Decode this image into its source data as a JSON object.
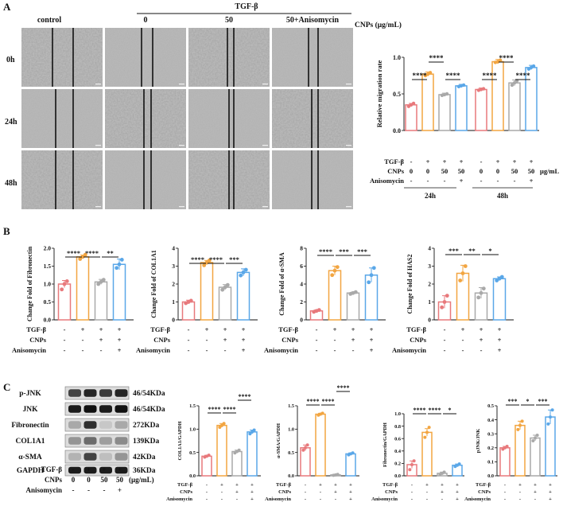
{
  "colors": {
    "control": "#e8797c",
    "tgf": "#f2a541",
    "cnps": "#a9a9a9",
    "aniso": "#5aa7e8",
    "bar_text": "#111111"
  },
  "panel_labels": [
    "A",
    "B",
    "C"
  ],
  "panel_a": {
    "tgf_header": "TGF-β",
    "column_labels": [
      "control",
      "0",
      "50",
      "50+Anisomycin"
    ],
    "conc_label": "CNPs (μg/mL)",
    "row_labels": [
      "0h",
      "24h",
      "48h"
    ]
  },
  "treatment_rows": {
    "labels": [
      "TGF-β",
      "CNPs",
      "Anisomycin"
    ],
    "tgf": [
      "-",
      "+",
      "+",
      "+"
    ],
    "cnps": [
      "-",
      "-",
      "+",
      "+"
    ],
    "aniso": [
      "-",
      "-",
      "-",
      "+"
    ]
  },
  "migration_rows": {
    "tgf": [
      "-",
      "+",
      "+",
      "+",
      "-",
      "+",
      "+",
      "+"
    ],
    "cnps": [
      "0",
      "0",
      "50",
      "50",
      "0",
      "0",
      "50",
      "50"
    ],
    "aniso": [
      "-",
      "-",
      "-",
      "+",
      "-",
      "-",
      "-",
      "+"
    ],
    "unit": "μg/mL"
  },
  "western": {
    "bands": [
      {
        "name": "p-JNK",
        "size": "46/54KDa"
      },
      {
        "name": "JNK",
        "size": "46/54KDa"
      },
      {
        "name": "Fibronectin",
        "size": "272KDa"
      },
      {
        "name": "COL1A1",
        "size": "139KDa"
      },
      {
        "name": "α-SMA",
        "size": "42KDa"
      },
      {
        "name": "GAPDH",
        "size": "36KDa"
      }
    ],
    "tgf": [
      "-",
      "+",
      "+",
      "+"
    ],
    "cnps": [
      "0",
      "0",
      "50",
      "50"
    ],
    "aniso": [
      "-",
      "-",
      "-",
      "+"
    ],
    "unit": "(μg/mL)"
  },
  "chart_data": [
    {
      "id": "migration",
      "type": "bar",
      "title": "",
      "xlabel": "",
      "ylabel": "Relative migration rate",
      "ylim": [
        0.0,
        1.0
      ],
      "yticks": [
        0.0,
        0.5,
        1.0
      ],
      "ytick_labels": [
        "0.0",
        "0.5",
        "1.0"
      ],
      "group_labels": [
        "24h",
        "48h"
      ],
      "values": [
        0.35,
        0.77,
        0.49,
        0.61,
        0.56,
        0.94,
        0.65,
        0.86
      ],
      "errors": [
        0.02,
        0.03,
        0.02,
        0.02,
        0.02,
        0.03,
        0.04,
        0.03
      ],
      "points": [
        [
          0.33,
          0.35,
          0.37
        ],
        [
          0.75,
          0.77,
          0.79
        ],
        [
          0.48,
          0.49,
          0.5
        ],
        [
          0.6,
          0.61,
          0.62
        ],
        [
          0.55,
          0.56,
          0.57
        ],
        [
          0.93,
          0.94,
          0.96
        ],
        [
          0.62,
          0.65,
          0.68
        ],
        [
          0.84,
          0.86,
          0.88
        ]
      ],
      "significance": [
        {
          "from": 0,
          "to": 1,
          "label": "****"
        },
        {
          "from": 1,
          "to": 2,
          "label": "****"
        },
        {
          "from": 2,
          "to": 3,
          "label": "****"
        },
        {
          "from": 4,
          "to": 5,
          "label": "****"
        },
        {
          "from": 5,
          "to": 6,
          "label": "****"
        },
        {
          "from": 6,
          "to": 7,
          "label": "****"
        }
      ]
    },
    {
      "id": "fibronectin",
      "type": "bar",
      "ylabel": "Change Fold of Fibronectin",
      "ylim": [
        0,
        2.0
      ],
      "yticks": [
        0,
        0.5,
        1.0,
        1.5,
        2.0
      ],
      "ytick_labels": [
        "0.0",
        "0.5",
        "1.0",
        "1.5",
        "2.0"
      ],
      "values": [
        1.0,
        1.76,
        1.06,
        1.55
      ],
      "errors": [
        0.1,
        0.05,
        0.07,
        0.15
      ],
      "points": [
        [
          0.85,
          1.0,
          1.08
        ],
        [
          1.7,
          1.76,
          1.82
        ],
        [
          1.0,
          1.06,
          1.12
        ],
        [
          1.45,
          1.55,
          1.68
        ]
      ],
      "significance": [
        {
          "from": 0,
          "to": 1,
          "label": "****"
        },
        {
          "from": 1,
          "to": 2,
          "label": "****"
        },
        {
          "from": 2,
          "to": 3,
          "label": "**"
        }
      ]
    },
    {
      "id": "col1a1",
      "type": "bar",
      "ylabel": "Change Fold of COL1A1",
      "ylim": [
        0,
        4
      ],
      "yticks": [
        0,
        1,
        2,
        3,
        4
      ],
      "ytick_labels": [
        "0",
        "1",
        "2",
        "3",
        "4"
      ],
      "values": [
        1.0,
        3.2,
        1.82,
        2.65
      ],
      "errors": [
        0.1,
        0.12,
        0.15,
        0.2
      ],
      "points": [
        [
          0.93,
          1.0,
          1.07
        ],
        [
          3.05,
          3.2,
          3.32
        ],
        [
          1.68,
          1.82,
          1.95
        ],
        [
          2.48,
          2.65,
          2.8
        ]
      ],
      "significance": [
        {
          "from": 0,
          "to": 1,
          "label": "****"
        },
        {
          "from": 1,
          "to": 2,
          "label": "****"
        },
        {
          "from": 2,
          "to": 3,
          "label": "***"
        }
      ]
    },
    {
      "id": "asma",
      "type": "bar",
      "ylabel": "Change Fold of α-SMA",
      "ylim": [
        0,
        8
      ],
      "yticks": [
        0,
        2,
        4,
        6,
        8
      ],
      "ytick_labels": [
        "0",
        "2",
        "4",
        "6",
        "8"
      ],
      "values": [
        1.0,
        5.5,
        3.0,
        5.0
      ],
      "errors": [
        0.1,
        0.5,
        0.1,
        0.8
      ],
      "points": [
        [
          0.9,
          1.0,
          1.1
        ],
        [
          5.0,
          5.5,
          5.9
        ],
        [
          2.9,
          3.0,
          3.1
        ],
        [
          4.2,
          5.0,
          5.8
        ]
      ],
      "significance": [
        {
          "from": 0,
          "to": 1,
          "label": "****"
        },
        {
          "from": 1,
          "to": 2,
          "label": "***"
        },
        {
          "from": 2,
          "to": 3,
          "label": "***"
        }
      ]
    },
    {
      "id": "has2",
      "type": "bar",
      "ylabel": "Change Fold of HAS2",
      "ylim": [
        0,
        4
      ],
      "yticks": [
        0,
        1,
        2,
        3,
        4
      ],
      "ytick_labels": [
        "0",
        "1",
        "2",
        "3",
        "4"
      ],
      "values": [
        1.0,
        2.6,
        1.5,
        2.3
      ],
      "errors": [
        0.35,
        0.45,
        0.3,
        0.1
      ],
      "points": [
        [
          0.7,
          1.0,
          1.35
        ],
        [
          2.2,
          2.6,
          3.0
        ],
        [
          1.25,
          1.5,
          1.75
        ],
        [
          2.2,
          2.3,
          2.4
        ]
      ],
      "significance": [
        {
          "from": 0,
          "to": 1,
          "label": "***"
        },
        {
          "from": 1,
          "to": 2,
          "label": "**"
        },
        {
          "from": 2,
          "to": 3,
          "label": "*"
        }
      ]
    },
    {
      "id": "col1a1_gapdh",
      "type": "bar",
      "ylabel": "COL1A1/GAPDH",
      "ylim": [
        0,
        1.5
      ],
      "yticks": [
        0,
        0.5,
        1.0,
        1.5
      ],
      "ytick_labels": [
        "0.0",
        "0.5",
        "1.0",
        "1.5"
      ],
      "values": [
        0.42,
        1.08,
        0.52,
        0.94
      ],
      "errors": [
        0.02,
        0.04,
        0.03,
        0.04
      ],
      "points": [
        [
          0.4,
          0.42,
          0.44
        ],
        [
          1.04,
          1.08,
          1.12
        ],
        [
          0.49,
          0.52,
          0.55
        ],
        [
          0.9,
          0.94,
          0.98
        ]
      ],
      "significance": [
        {
          "from": 0,
          "to": 1,
          "label": "****"
        },
        {
          "from": 1,
          "to": 2,
          "label": "****"
        },
        {
          "from": 2,
          "to": 3,
          "label": "****"
        }
      ]
    },
    {
      "id": "asma_gapdh",
      "type": "bar",
      "ylabel": "α-SMA/GAPDH",
      "ylim": [
        0,
        1.5
      ],
      "yticks": [
        0,
        0.5,
        1.0,
        1.5
      ],
      "ytick_labels": [
        "0.0",
        "0.5",
        "1.0",
        "1.5"
      ],
      "values": [
        0.6,
        1.32,
        0.02,
        0.47
      ],
      "errors": [
        0.06,
        0.02,
        0.01,
        0.02
      ],
      "points": [
        [
          0.55,
          0.6,
          0.66
        ],
        [
          1.3,
          1.32,
          1.34
        ],
        [
          0.01,
          0.02,
          0.03
        ],
        [
          0.45,
          0.47,
          0.49
        ]
      ],
      "significance": [
        {
          "from": 0,
          "to": 1,
          "label": "****"
        },
        {
          "from": 1,
          "to": 2,
          "label": "****"
        },
        {
          "from": 2,
          "to": 3,
          "label": "****"
        }
      ]
    },
    {
      "id": "fibronectin_gapdh",
      "type": "bar",
      "ylabel": "Fibronectin/GAPDH",
      "ylim": [
        0,
        1.0
      ],
      "yticks": [
        0,
        0.2,
        0.4,
        0.6,
        0.8,
        1.0
      ],
      "ytick_labels": [
        "0.0",
        "0.2",
        "0.4",
        "0.6",
        "0.8",
        "1.0"
      ],
      "values": [
        0.18,
        0.7,
        0.04,
        0.17
      ],
      "errors": [
        0.06,
        0.06,
        0.02,
        0.02
      ],
      "points": [
        [
          0.1,
          0.18,
          0.24
        ],
        [
          0.62,
          0.7,
          0.78
        ],
        [
          0.02,
          0.04,
          0.06
        ],
        [
          0.15,
          0.17,
          0.19
        ]
      ],
      "significance": [
        {
          "from": 0,
          "to": 1,
          "label": "****"
        },
        {
          "from": 1,
          "to": 2,
          "label": "****"
        },
        {
          "from": 2,
          "to": 3,
          "label": "*"
        }
      ]
    },
    {
      "id": "pjnk_jnk",
      "type": "bar",
      "ylabel": "pJNK/JNK",
      "ylim": [
        0,
        0.5
      ],
      "yticks": [
        0,
        0.1,
        0.2,
        0.3,
        0.4,
        0.5
      ],
      "ytick_labels": [
        "0.0",
        "0.1",
        "0.2",
        "0.3",
        "0.4",
        "0.5"
      ],
      "values": [
        0.2,
        0.36,
        0.27,
        0.42
      ],
      "errors": [
        0.01,
        0.03,
        0.02,
        0.05
      ],
      "points": [
        [
          0.19,
          0.2,
          0.21
        ],
        [
          0.33,
          0.36,
          0.39
        ],
        [
          0.25,
          0.27,
          0.29
        ],
        [
          0.37,
          0.42,
          0.47
        ]
      ],
      "significance": [
        {
          "from": 0,
          "to": 1,
          "label": "***"
        },
        {
          "from": 1,
          "to": 2,
          "label": "*"
        },
        {
          "from": 2,
          "to": 3,
          "label": "***"
        }
      ]
    }
  ]
}
